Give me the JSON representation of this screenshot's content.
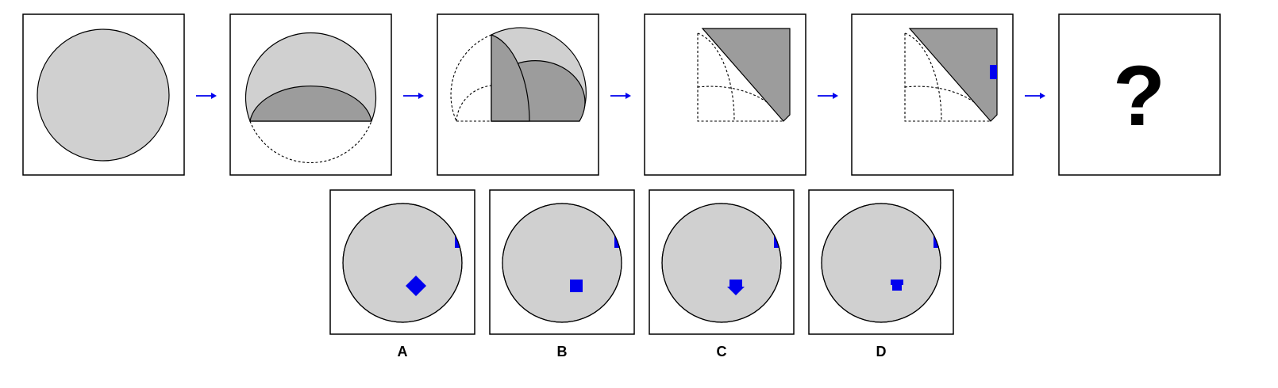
{
  "question_mark": "?",
  "options": [
    {
      "label": "A"
    },
    {
      "label": "B"
    },
    {
      "label": "C"
    },
    {
      "label": "D"
    }
  ],
  "colors": {
    "paper": "#d0d0d0",
    "folded_layer": "#9c9c9c",
    "hole_mark": "#0000ee",
    "arrow": "#0000ee"
  }
}
